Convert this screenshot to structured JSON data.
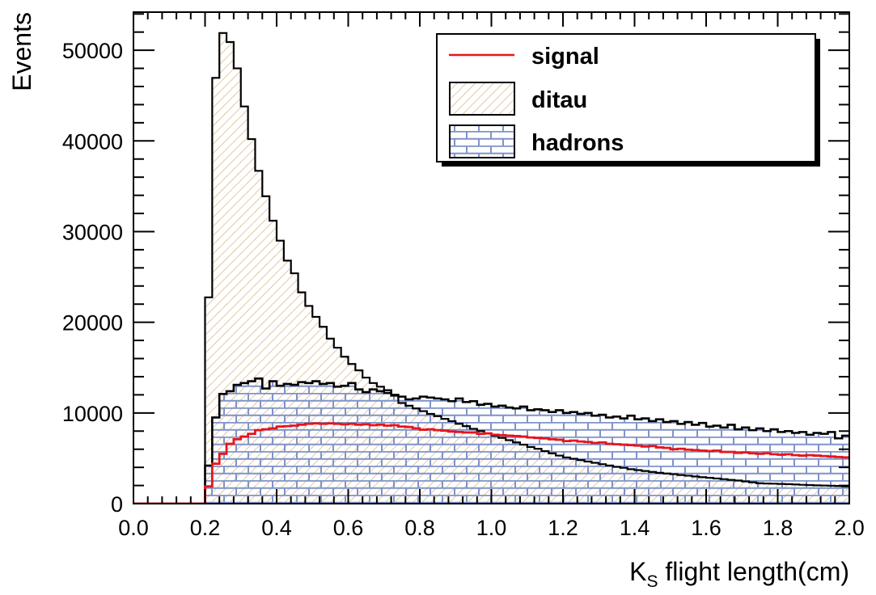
{
  "chart_data": {
    "type": "histogram",
    "title": "",
    "xlabel_main": "K",
    "xlabel_sub": "S",
    "xlabel_rest": " flight length(cm)",
    "ylabel": "Events",
    "xlim": [
      0.0,
      2.0
    ],
    "ylim": [
      0,
      54200
    ],
    "nbins": 100,
    "x_ticks": [
      "0.0",
      "0.2",
      "0.4",
      "0.6",
      "0.8",
      "1.0",
      "1.2",
      "1.4",
      "1.6",
      "1.8",
      "2.0"
    ],
    "y_ticks": [
      "0",
      "10000",
      "20000",
      "30000",
      "40000",
      "50000"
    ],
    "legend_position": "top-right",
    "series": [
      {
        "name": "ditau",
        "style": "hatched",
        "color": "#d6b27f",
        "values": [
          0,
          0,
          0,
          0,
          0,
          0,
          0,
          0,
          0,
          0,
          22750,
          46950,
          51900,
          50900,
          48000,
          43800,
          40200,
          36700,
          33900,
          31200,
          29000,
          26800,
          25400,
          23300,
          21800,
          20600,
          19500,
          18200,
          17200,
          16200,
          15400,
          14700,
          13900,
          13300,
          12900,
          12200,
          11900,
          11100,
          10800,
          10500,
          10200,
          9900,
          9650,
          9350,
          9100,
          8800,
          8550,
          8250,
          8000,
          7750,
          7500,
          7250,
          7000,
          6750,
          6500,
          6250,
          6050,
          5800,
          5550,
          5300,
          5100,
          4950,
          4800,
          4650,
          4500,
          4350,
          4200,
          4050,
          3950,
          3800,
          3700,
          3600,
          3500,
          3400,
          3320,
          3250,
          3150,
          3080,
          3000,
          2920,
          2850,
          2780,
          2700,
          2620,
          2550,
          2450,
          2350,
          2250,
          2220,
          2200,
          2170,
          2150,
          2120,
          2080,
          2050,
          2020,
          2000,
          1980,
          1950,
          1900
        ]
      },
      {
        "name": "hadrons",
        "style": "brick",
        "color": "#7f93c9",
        "values": [
          0,
          0,
          0,
          0,
          0,
          0,
          0,
          0,
          0,
          0,
          4200,
          9500,
          12100,
          12400,
          13100,
          13300,
          13500,
          13800,
          12700,
          13500,
          13000,
          13200,
          13100,
          13400,
          13300,
          13500,
          13200,
          13300,
          12900,
          13000,
          13300,
          12600,
          12300,
          12600,
          12400,
          12500,
          12000,
          11800,
          11500,
          11600,
          11800,
          11700,
          11600,
          11500,
          11300,
          11600,
          11200,
          11300,
          10900,
          11000,
          10700,
          10800,
          10600,
          10500,
          10700,
          10300,
          10400,
          10300,
          10100,
          10300,
          10000,
          10100,
          9900,
          10000,
          9700,
          9800,
          9500,
          9600,
          9400,
          9700,
          9300,
          9400,
          9100,
          9300,
          9000,
          9100,
          8800,
          9000,
          8700,
          8900,
          8500,
          8600,
          8400,
          8700,
          8200,
          8400,
          8100,
          8300,
          8000,
          8200,
          7900,
          8000,
          7800,
          7900,
          7600,
          7800,
          7700,
          7900,
          7200,
          7500
        ]
      },
      {
        "name": "signal",
        "style": "line",
        "color": "#e8141c",
        "values": [
          0,
          0,
          0,
          0,
          0,
          0,
          0,
          0,
          0,
          0,
          1900,
          4400,
          5500,
          6600,
          7100,
          7400,
          7700,
          8100,
          8200,
          8300,
          8500,
          8550,
          8600,
          8700,
          8800,
          8850,
          8800,
          8850,
          8800,
          8750,
          8800,
          8700,
          8750,
          8650,
          8700,
          8600,
          8650,
          8500,
          8450,
          8300,
          8150,
          8200,
          8100,
          8050,
          7950,
          7900,
          7850,
          7850,
          7700,
          7750,
          7600,
          7550,
          7500,
          7450,
          7400,
          7300,
          7250,
          7200,
          7100,
          7050,
          6900,
          6950,
          6850,
          6800,
          6700,
          6750,
          6600,
          6550,
          6500,
          6450,
          6400,
          6300,
          6350,
          6200,
          6150,
          6000,
          6050,
          5950,
          5900,
          5850,
          5800,
          5850,
          5700,
          5700,
          5600,
          5650,
          5550,
          5500,
          5550,
          5450,
          5400,
          5450,
          5350,
          5300,
          5350,
          5300,
          5250,
          5200,
          5150,
          5100
        ]
      }
    ],
    "legend": [
      "signal",
      "ditau",
      "hadrons"
    ]
  }
}
